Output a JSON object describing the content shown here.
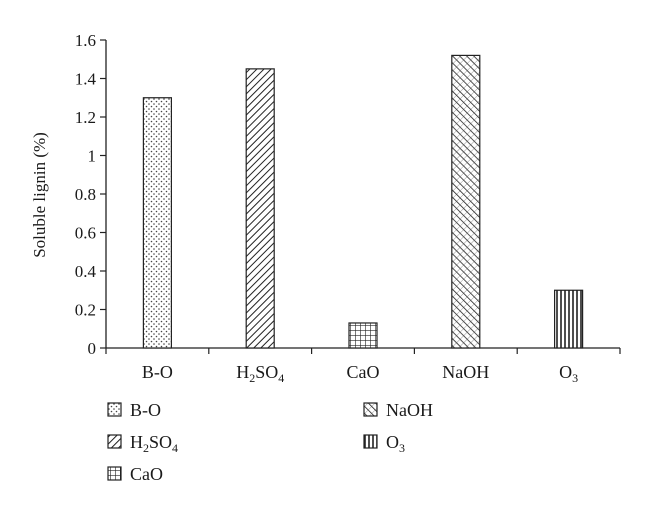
{
  "chart_data": {
    "type": "bar",
    "categories": [
      {
        "base": "B-O",
        "sub": ""
      },
      {
        "base": "H",
        "sub": "2",
        "base2": "SO",
        "sub2": "4"
      },
      {
        "base": "CaO",
        "sub": ""
      },
      {
        "base": "NaOH",
        "sub": ""
      },
      {
        "base": "O",
        "sub": "3"
      }
    ],
    "values": [
      1.3,
      1.45,
      0.13,
      1.52,
      0.3
    ],
    "patterns": [
      "dots",
      "diag-back",
      "grid",
      "crosshatch",
      "vertical"
    ],
    "ylabel": "Soluble lignin (%)",
    "ylim": [
      0,
      1.6
    ],
    "yticks": [
      "0",
      "0.2",
      "0.4",
      "0.6",
      "0.8",
      "1",
      "1.2",
      "1.4",
      "1.6"
    ],
    "grid": false,
    "legend": {
      "placement": "bottom",
      "entries": [
        {
          "base": "B-O",
          "sub": "",
          "pattern": "dots"
        },
        {
          "base": "H",
          "sub": "2",
          "base2": "SO",
          "sub2": "4",
          "pattern": "diag-back"
        },
        {
          "base": "CaO",
          "sub": "",
          "pattern": "grid"
        },
        {
          "base": "NaOH",
          "sub": "",
          "pattern": "crosshatch"
        },
        {
          "base": "O",
          "sub": "3",
          "pattern": "vertical"
        }
      ]
    }
  }
}
